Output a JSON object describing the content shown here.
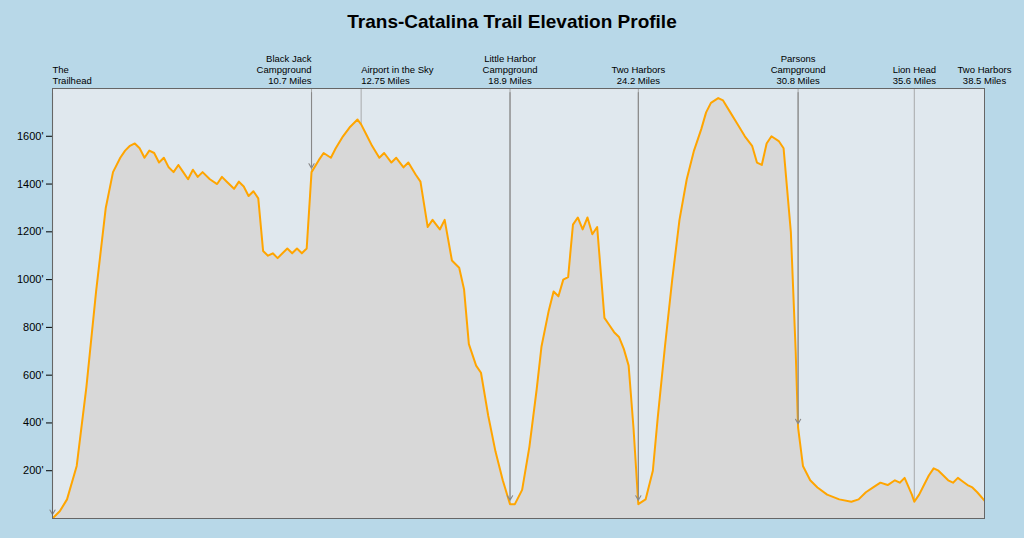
{
  "chart_data": {
    "type": "area",
    "title": "Trans-Catalina Trail Elevation Profile",
    "color": "#FFA500",
    "x": [
      0.0,
      0.3,
      0.6,
      1.0,
      1.4,
      1.8,
      2.2,
      2.5,
      2.8,
      3.0,
      3.2,
      3.4,
      3.6,
      3.8,
      4.0,
      4.2,
      4.4,
      4.6,
      4.8,
      5.0,
      5.2,
      5.4,
      5.6,
      5.8,
      6.0,
      6.2,
      6.5,
      6.8,
      7.0,
      7.2,
      7.5,
      7.7,
      7.9,
      8.1,
      8.3,
      8.5,
      8.7,
      8.9,
      9.1,
      9.3,
      9.5,
      9.7,
      9.9,
      10.1,
      10.3,
      10.5,
      10.7,
      11.0,
      11.2,
      11.5,
      11.7,
      12.0,
      12.3,
      12.6,
      12.75,
      13.0,
      13.2,
      13.5,
      13.7,
      14.0,
      14.2,
      14.5,
      14.7,
      15.0,
      15.2,
      15.5,
      15.7,
      16.0,
      16.2,
      16.5,
      16.8,
      17.0,
      17.2,
      17.5,
      17.7,
      18.0,
      18.3,
      18.6,
      18.9,
      19.1,
      19.4,
      19.7,
      20.0,
      20.2,
      20.5,
      20.7,
      20.9,
      21.1,
      21.3,
      21.5,
      21.7,
      21.9,
      22.1,
      22.3,
      22.5,
      22.8,
      23.0,
      23.2,
      23.4,
      23.6,
      23.8,
      24.0,
      24.2,
      24.5,
      24.8,
      25.0,
      25.3,
      25.6,
      25.9,
      26.2,
      26.5,
      26.8,
      27.0,
      27.2,
      27.5,
      27.7,
      28.0,
      28.3,
      28.6,
      28.9,
      29.1,
      29.3,
      29.5,
      29.7,
      30.0,
      30.2,
      30.5,
      30.7,
      30.8,
      31.0,
      31.3,
      31.6,
      32.0,
      32.5,
      33.0,
      33.3,
      33.6,
      33.9,
      34.2,
      34.5,
      34.8,
      35.0,
      35.2,
      35.5,
      35.6,
      35.8,
      36.0,
      36.2,
      36.4,
      36.6,
      36.8,
      37.0,
      37.2,
      37.4,
      37.6,
      37.8,
      38.0,
      38.2,
      38.5
    ],
    "values": [
      0,
      30,
      80,
      220,
      550,
      950,
      1300,
      1450,
      1510,
      1540,
      1560,
      1570,
      1550,
      1510,
      1540,
      1530,
      1490,
      1510,
      1470,
      1450,
      1480,
      1450,
      1420,
      1460,
      1430,
      1450,
      1420,
      1400,
      1430,
      1410,
      1380,
      1410,
      1390,
      1350,
      1370,
      1340,
      1120,
      1100,
      1110,
      1090,
      1110,
      1130,
      1110,
      1130,
      1110,
      1130,
      1450,
      1500,
      1530,
      1510,
      1550,
      1600,
      1640,
      1670,
      1650,
      1600,
      1560,
      1510,
      1530,
      1490,
      1510,
      1470,
      1490,
      1440,
      1410,
      1220,
      1250,
      1210,
      1250,
      1080,
      1050,
      960,
      730,
      640,
      610,
      430,
      280,
      160,
      60,
      60,
      120,
      300,
      540,
      720,
      870,
      950,
      930,
      1000,
      1010,
      1230,
      1260,
      1210,
      1260,
      1190,
      1220,
      840,
      810,
      780,
      760,
      710,
      640,
      380,
      60,
      80,
      200,
      420,
      720,
      1000,
      1250,
      1420,
      1540,
      1630,
      1700,
      1740,
      1760,
      1750,
      1700,
      1650,
      1600,
      1560,
      1490,
      1480,
      1570,
      1600,
      1580,
      1550,
      1200,
      700,
      380,
      220,
      160,
      130,
      100,
      80,
      70,
      80,
      110,
      130,
      150,
      140,
      160,
      150,
      170,
      100,
      70,
      100,
      140,
      180,
      210,
      200,
      180,
      160,
      150,
      170,
      155,
      140,
      130,
      110,
      75
    ],
    "xlim": [
      0,
      38.5
    ],
    "ylim": [
      0,
      1800
    ],
    "yticks": [
      {
        "value": 200,
        "label": "200'"
      },
      {
        "value": 400,
        "label": "400'"
      },
      {
        "value": 600,
        "label": "600'"
      },
      {
        "value": 800,
        "label": "800'"
      },
      {
        "value": 1000,
        "label": "1000'"
      },
      {
        "value": 1200,
        "label": "1200'"
      },
      {
        "value": 1400,
        "label": "1400'"
      },
      {
        "value": 1600,
        "label": "1600'"
      }
    ],
    "tick_labels": "y",
    "grid": true,
    "annotations": [
      {
        "x": 0.0,
        "text": "The\nTrailhead",
        "arrow": true
      },
      {
        "x": 10.7,
        "text": "Black Jack\nCampground\n10.7 Miles",
        "arrow": true
      },
      {
        "x": 12.75,
        "text": "Airport in the Sky\n12.75 Miles",
        "arrow": false
      },
      {
        "x": 18.9,
        "text": "Little Harbor\nCampground\n18.9 Miles",
        "arrow": true
      },
      {
        "x": 24.2,
        "text": "Two Harbors\n24.2 Miles",
        "arrow": true
      },
      {
        "x": 30.8,
        "text": "Parsons\nCampground\n30.8 Miles",
        "arrow": true
      },
      {
        "x": 35.6,
        "text": "Lion Head\n35.6 Miles",
        "arrow": false
      },
      {
        "x": 38.5,
        "text": "Two Harbors\n38.5 Miles",
        "arrow": false
      }
    ]
  }
}
